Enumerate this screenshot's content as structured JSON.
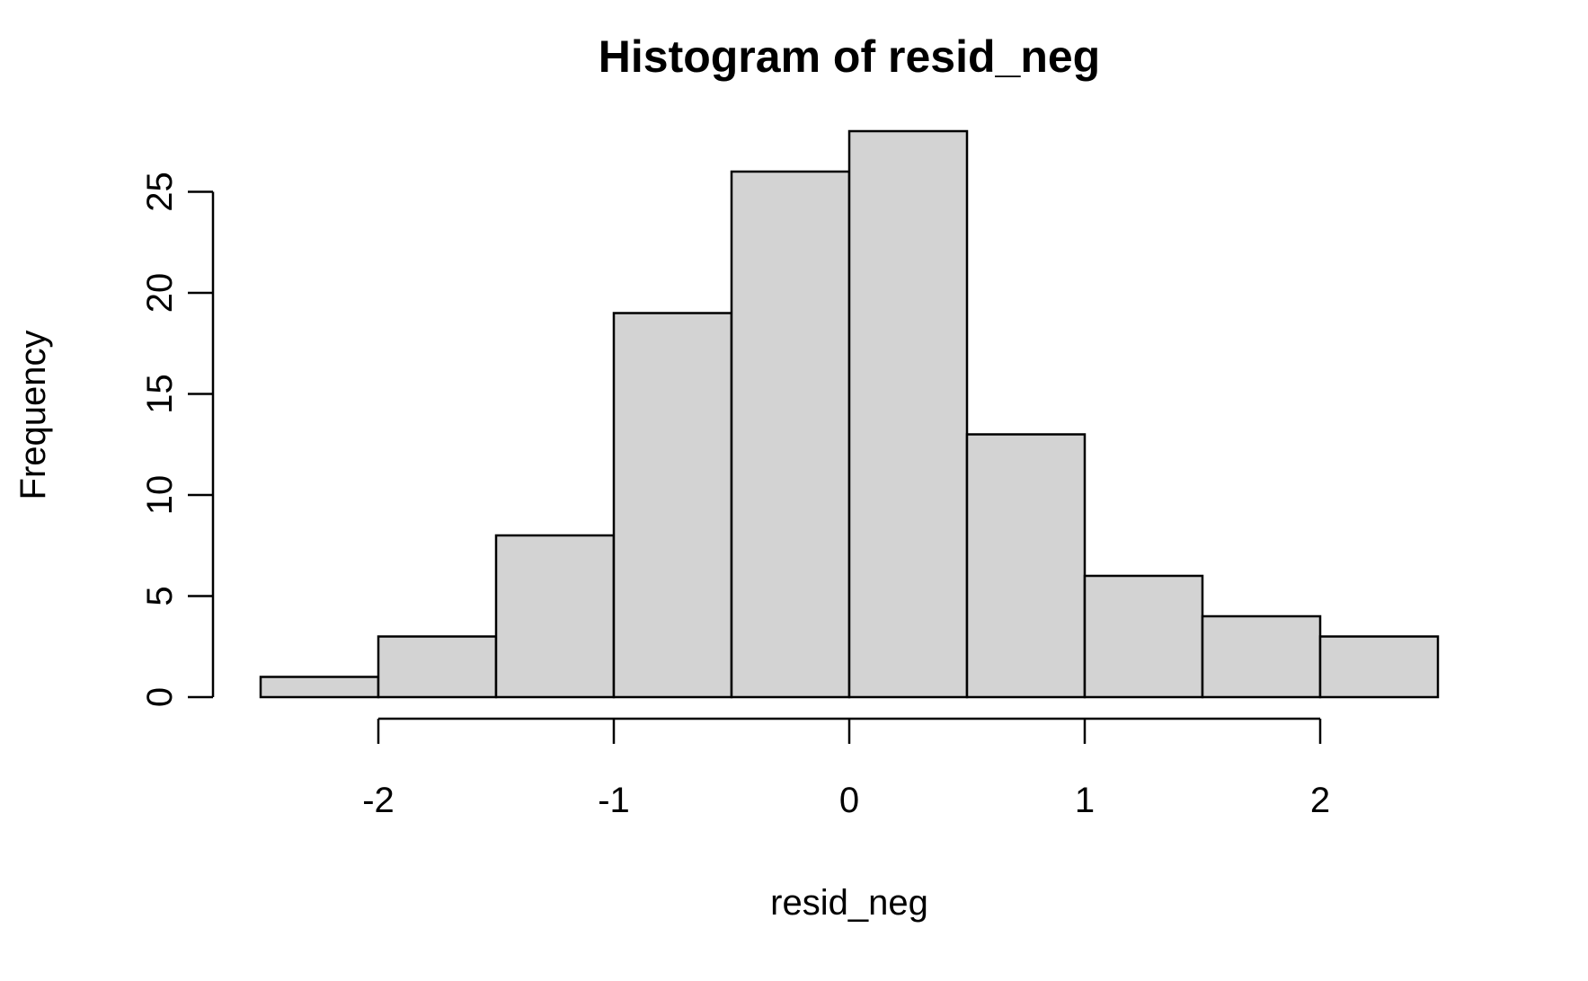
{
  "chart_data": {
    "type": "bar",
    "title": "Histogram of resid_neg",
    "xlabel": "resid_neg",
    "ylabel": "Frequency",
    "bins": [
      {
        "x0": -2.5,
        "x1": -2.0,
        "count": 1
      },
      {
        "x0": -2.0,
        "x1": -1.5,
        "count": 3
      },
      {
        "x0": -1.5,
        "x1": -1.0,
        "count": 8
      },
      {
        "x0": -1.0,
        "x1": -0.5,
        "count": 19
      },
      {
        "x0": -0.5,
        "x1": 0.0,
        "count": 26
      },
      {
        "x0": 0.0,
        "x1": 0.5,
        "count": 28
      },
      {
        "x0": 0.5,
        "x1": 1.0,
        "count": 13
      },
      {
        "x0": 1.0,
        "x1": 1.5,
        "count": 6
      },
      {
        "x0": 1.5,
        "x1": 2.0,
        "count": 4
      },
      {
        "x0": 2.0,
        "x1": 2.5,
        "count": 3
      }
    ],
    "x_ticks": [
      -2,
      -1,
      0,
      1,
      2
    ],
    "x_tick_labels": [
      "-2",
      "-1",
      "0",
      "1",
      "2"
    ],
    "y_ticks": [
      0,
      5,
      10,
      15,
      20,
      25
    ],
    "y_tick_labels": [
      "0",
      "5",
      "10",
      "15",
      "20",
      "25"
    ],
    "xlim": [
      -2.5,
      2.5
    ],
    "ylim": [
      0,
      28
    ],
    "bar_color": "#d3d3d3",
    "grid": false,
    "legend": "none"
  }
}
